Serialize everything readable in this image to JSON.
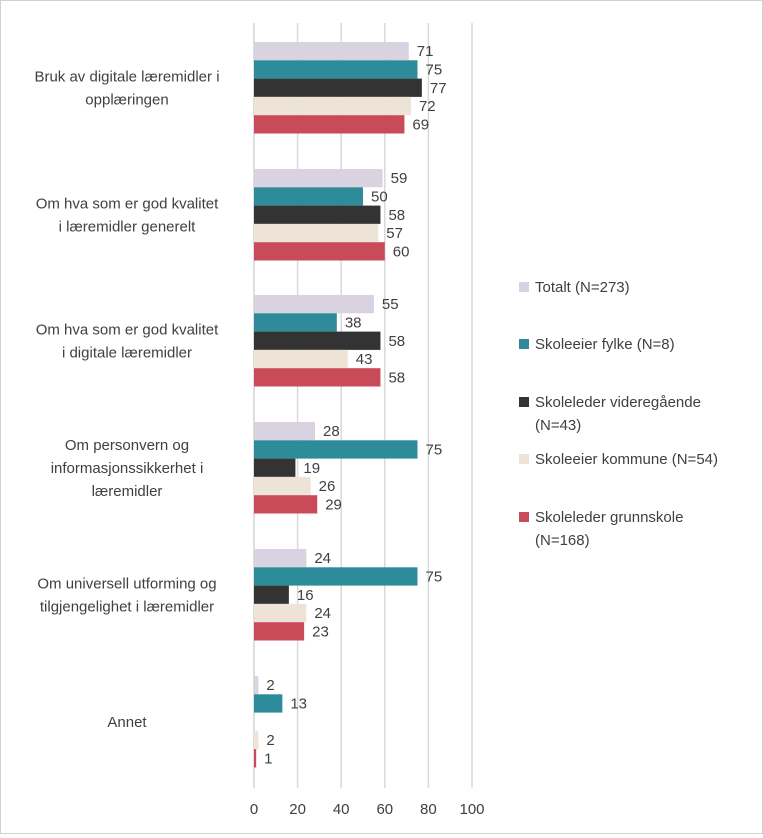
{
  "chart_data": {
    "type": "bar",
    "orientation": "horizontal",
    "categories": [
      [
        "Bruk av digitale læremidler i",
        "opplæringen"
      ],
      [
        "Om hva som er god kvalitet",
        "i læremidler generelt"
      ],
      [
        "Om hva som er god kvalitet",
        "i digitale læremidler"
      ],
      [
        "Om personvern og",
        "informasjonssikkerhet i",
        "læremidler"
      ],
      [
        "Om universell utforming og",
        "tilgjengelighet i læremidler"
      ],
      [
        "Annet"
      ]
    ],
    "series": [
      {
        "name": "Totalt (N=273)",
        "legend_lines": [
          "Totalt (N=273)"
        ],
        "color": "#d9d2e0",
        "values": [
          71,
          59,
          55,
          28,
          24,
          2
        ]
      },
      {
        "name": "Skoleeier fylke (N=8)",
        "legend_lines": [
          "Skoleeier fylke (N=8)"
        ],
        "color": "#2e8b9a",
        "values": [
          75,
          50,
          38,
          75,
          75,
          13
        ]
      },
      {
        "name": "Skoleleder videregående (N=43)",
        "legend_lines": [
          "Skoleleder videregående",
          "(N=43)"
        ],
        "color": "#333333",
        "values": [
          77,
          58,
          58,
          19,
          16,
          null
        ]
      },
      {
        "name": "Skoleeier kommune (N=54)",
        "legend_lines": [
          "Skoleeier kommune (N=54)"
        ],
        "color": "#ede3d6",
        "values": [
          72,
          57,
          43,
          26,
          24,
          2
        ]
      },
      {
        "name": "Skoleleder grunnskole (N=168)",
        "legend_lines": [
          "Skoleleder grunnskole",
          "(N=168)"
        ],
        "color": "#c94a58",
        "values": [
          69,
          60,
          58,
          29,
          23,
          1
        ]
      }
    ],
    "x_ticks": [
      "0",
      "20",
      "40",
      "60",
      "80",
      "100"
    ],
    "xlim": [
      0,
      100
    ],
    "grid": true,
    "legend_position": "right",
    "title": "",
    "xlabel": "",
    "ylabel": ""
  }
}
